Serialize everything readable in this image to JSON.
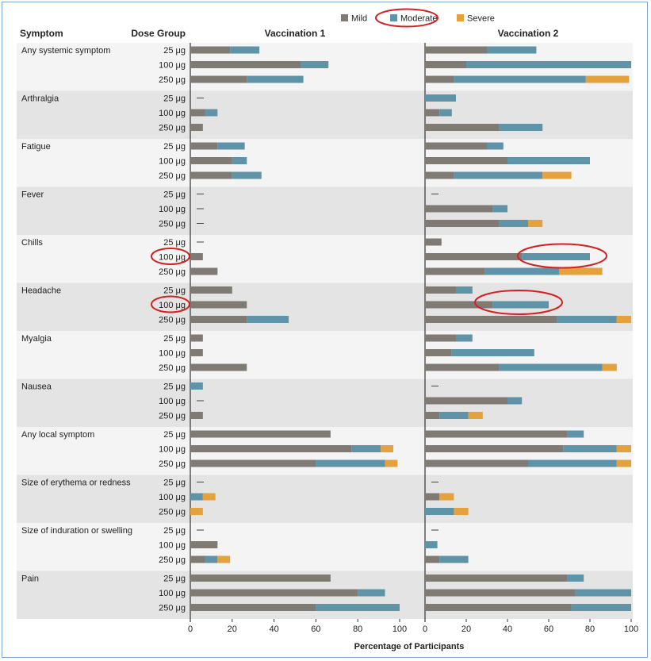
{
  "chart_data": {
    "type": "bar",
    "orientation": "horizontal",
    "stacked": true,
    "header": {
      "symptom": "Symptom",
      "dose_group": "Dose Group"
    },
    "panels": [
      "Vaccination 1",
      "Vaccination 2"
    ],
    "xlabel": "Percentage of Participants",
    "xlim": [
      0,
      100
    ],
    "xticks": [
      "0",
      "20",
      "40",
      "60",
      "80",
      "100"
    ],
    "legend": {
      "placement": "top-right",
      "items": [
        {
          "name": "Mild",
          "color": "#7f7b74"
        },
        {
          "name": "Moderate",
          "color": "#5f93a8"
        },
        {
          "name": "Severe",
          "color": "#e3a23e"
        }
      ]
    },
    "none_marker": "—",
    "symptoms": [
      {
        "name": "Any systemic symptom",
        "rows": [
          {
            "dose": "25 μg",
            "v1": [
              19,
              14,
              0
            ],
            "v2": [
              30,
              24,
              0
            ]
          },
          {
            "dose": "100 μg",
            "v1": [
              53,
              13,
              0
            ],
            "v2": [
              20,
              80,
              0
            ]
          },
          {
            "dose": "250 μg",
            "v1": [
              27,
              27,
              0
            ],
            "v2": [
              14,
              64,
              21
            ]
          }
        ]
      },
      {
        "name": "Arthralgia",
        "rows": [
          {
            "dose": "25 μg",
            "v1": null,
            "v2": [
              0,
              15,
              0
            ]
          },
          {
            "dose": "100 μg",
            "v1": [
              7,
              6,
              0
            ],
            "v2": [
              7,
              6,
              0
            ]
          },
          {
            "dose": "250 μg",
            "v1": [
              6,
              0,
              0
            ],
            "v2": [
              36,
              21,
              0
            ]
          }
        ]
      },
      {
        "name": "Fatigue",
        "rows": [
          {
            "dose": "25 μg",
            "v1": [
              13,
              13,
              0
            ],
            "v2": [
              30,
              8,
              0
            ]
          },
          {
            "dose": "100 μg",
            "v1": [
              20,
              7,
              0
            ],
            "v2": [
              40,
              40,
              0
            ]
          },
          {
            "dose": "250 μg",
            "v1": [
              20,
              14,
              0
            ],
            "v2": [
              14,
              43,
              14
            ]
          }
        ]
      },
      {
        "name": "Fever",
        "rows": [
          {
            "dose": "25 μg",
            "v1": null,
            "v2": null
          },
          {
            "dose": "100 μg",
            "v1": null,
            "v2": [
              33,
              7,
              0
            ]
          },
          {
            "dose": "250 μg",
            "v1": null,
            "v2": [
              36,
              14,
              7
            ]
          }
        ]
      },
      {
        "name": "Chills",
        "rows": [
          {
            "dose": "25 μg",
            "v1": null,
            "v2": [
              8,
              0,
              0
            ]
          },
          {
            "dose": "100 μg",
            "v1": [
              6,
              0,
              0
            ],
            "v2": [
              47,
              33,
              0
            ]
          },
          {
            "dose": "250 μg",
            "v1": [
              13,
              0,
              0
            ],
            "v2": [
              29,
              36,
              21
            ]
          }
        ]
      },
      {
        "name": "Headache",
        "rows": [
          {
            "dose": "25 μg",
            "v1": [
              20,
              0,
              0
            ],
            "v2": [
              15,
              8,
              0
            ]
          },
          {
            "dose": "100 μg",
            "v1": [
              27,
              0,
              0
            ],
            "v2": [
              33,
              27,
              0
            ]
          },
          {
            "dose": "250 μg",
            "v1": [
              27,
              20,
              0
            ],
            "v2": [
              64,
              29,
              7
            ]
          }
        ]
      },
      {
        "name": "Myalgia",
        "rows": [
          {
            "dose": "25 μg",
            "v1": [
              6,
              0,
              0
            ],
            "v2": [
              15,
              8,
              0
            ]
          },
          {
            "dose": "100 μg",
            "v1": [
              6,
              0,
              0
            ],
            "v2": [
              13,
              40,
              0
            ]
          },
          {
            "dose": "250 μg",
            "v1": [
              27,
              0,
              0
            ],
            "v2": [
              36,
              50,
              7
            ]
          }
        ]
      },
      {
        "name": "Nausea",
        "rows": [
          {
            "dose": "25 μg",
            "v1": [
              0,
              6,
              0
            ],
            "v2": null
          },
          {
            "dose": "100 μg",
            "v1": null,
            "v2": [
              40,
              7,
              0
            ]
          },
          {
            "dose": "250 μg",
            "v1": [
              6,
              0,
              0
            ],
            "v2": [
              7,
              14,
              7
            ]
          }
        ]
      },
      {
        "name": "Any local symptom",
        "rows": [
          {
            "dose": "25 μg",
            "v1": [
              67,
              0,
              0
            ],
            "v2": [
              69,
              8,
              0
            ]
          },
          {
            "dose": "100 μg",
            "v1": [
              77,
              14,
              6
            ],
            "v2": [
              67,
              26,
              7
            ]
          },
          {
            "dose": "250 μg",
            "v1": [
              60,
              33,
              6
            ],
            "v2": [
              50,
              43,
              7
            ]
          }
        ]
      },
      {
        "name": "Size of erythema or redness",
        "rows": [
          {
            "dose": "25 μg",
            "v1": null,
            "v2": null
          },
          {
            "dose": "100 μg",
            "v1": [
              0,
              6,
              6
            ],
            "v2": [
              7,
              0,
              7
            ]
          },
          {
            "dose": "250 μg",
            "v1": [
              0,
              0,
              6
            ],
            "v2": [
              0,
              14,
              7
            ]
          }
        ]
      },
      {
        "name": "Size of induration or swelling",
        "rows": [
          {
            "dose": "25 μg",
            "v1": null,
            "v2": null
          },
          {
            "dose": "100 μg",
            "v1": [
              13,
              0,
              0
            ],
            "v2": [
              0,
              6,
              0
            ]
          },
          {
            "dose": "250 μg",
            "v1": [
              7,
              6,
              6
            ],
            "v2": [
              7,
              14,
              0
            ]
          }
        ]
      },
      {
        "name": "Pain",
        "rows": [
          {
            "dose": "25 μg",
            "v1": [
              67,
              0,
              0
            ],
            "v2": [
              69,
              8,
              0
            ]
          },
          {
            "dose": "100 μg",
            "v1": [
              80,
              13,
              0
            ],
            "v2": [
              73,
              27,
              0
            ]
          },
          {
            "dose": "250 μg",
            "v1": [
              60,
              40,
              0
            ],
            "v2": [
              71,
              29,
              0
            ]
          }
        ]
      }
    ]
  },
  "annotations": {
    "color": "#d42020",
    "circled": [
      "legend-moderate",
      "chills-100-dose-label",
      "headache-100-dose-label",
      "chills-100-v2-bar",
      "headache-100-v2-bar"
    ]
  }
}
